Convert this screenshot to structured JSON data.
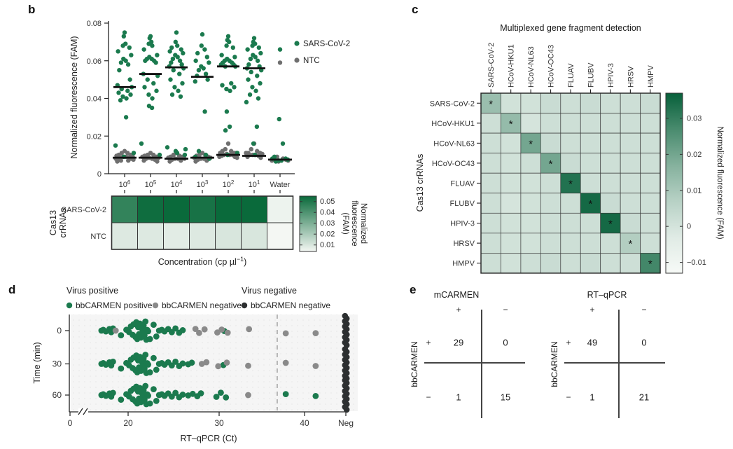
{
  "panels": {
    "b": "b",
    "c": "c",
    "d": "d",
    "e": "e"
  },
  "colors": {
    "green": "#1b7a4e",
    "gray": "#6f6f6f",
    "gray_light": "#8a8a8a",
    "black_dot": "#2c2f30",
    "strip_dark": "#0a6a3b",
    "strip_light": "#f4f7f3",
    "cmap_dark": "#07603a",
    "cmap_light": "#f7faf7"
  },
  "chart_data": [
    {
      "id": "b_scatter",
      "type": "scatter",
      "ylabel": "Normalized fluorescence (FAM)",
      "ylim": [
        0,
        0.08
      ],
      "yticks": [
        "0",
        "0.02",
        "0.04",
        "0.06",
        "0.08"
      ],
      "ytick_values": [
        0,
        0.02,
        0.04,
        0.06,
        0.08
      ],
      "categories": [
        {
          "b": "10",
          "s": "6"
        },
        {
          "b": "10",
          "s": "5"
        },
        {
          "b": "10",
          "s": "4"
        },
        {
          "b": "10",
          "s": "3"
        },
        {
          "b": "10",
          "s": "2"
        },
        {
          "b": "10",
          "s": "1"
        },
        {
          "b": "Water",
          "s": ""
        }
      ],
      "legend": [
        {
          "label": "SARS-CoV-2",
          "color": "#1b7a4e"
        },
        {
          "label": "NTC",
          "color": "#6f6f6f"
        }
      ],
      "series": [
        {
          "name": "SARS-CoV-2",
          "color": "#1b7a4e",
          "points": [
            [
              0.075,
              0.073,
              0.069,
              0.068,
              0.067,
              0.065,
              0.063,
              0.061,
              0.06,
              0.059,
              0.058,
              0.055,
              0.05,
              0.047,
              0.046,
              0.045,
              0.044,
              0.043,
              0.042,
              0.041,
              0.04,
              0.039,
              0.03,
              0.015,
              0.011,
              0.009
            ],
            [
              0.073,
              0.072,
              0.07,
              0.069,
              0.068,
              0.066,
              0.063,
              0.062,
              0.061,
              0.061,
              0.06,
              0.06,
              0.059,
              0.053,
              0.052,
              0.05,
              0.048,
              0.046,
              0.044,
              0.042,
              0.04,
              0.036,
              0.035,
              0.016,
              0.01
            ],
            [
              0.075,
              0.07,
              0.068,
              0.067,
              0.066,
              0.065,
              0.064,
              0.063,
              0.062,
              0.061,
              0.06,
              0.059,
              0.058,
              0.057,
              0.056,
              0.055,
              0.053,
              0.05,
              0.048,
              0.046,
              0.044,
              0.042,
              0.041,
              0.014,
              0.013,
              0.012,
              0.011,
              0.01
            ],
            [
              0.074,
              0.068,
              0.066,
              0.064,
              0.062,
              0.06,
              0.059,
              0.057,
              0.056,
              0.055,
              0.053,
              0.052,
              0.05,
              0.049,
              0.033,
              0.012,
              0.01,
              0.009,
              0.008
            ],
            [
              0.073,
              0.071,
              0.07,
              0.068,
              0.067,
              0.063,
              0.062,
              0.061,
              0.06,
              0.06,
              0.059,
              0.059,
              0.058,
              0.058,
              0.057,
              0.057,
              0.048,
              0.047,
              0.046,
              0.045,
              0.044,
              0.033,
              0.025,
              0.023,
              0.011,
              0.01
            ],
            [
              0.072,
              0.07,
              0.069,
              0.068,
              0.067,
              0.066,
              0.064,
              0.063,
              0.062,
              0.061,
              0.06,
              0.058,
              0.057,
              0.056,
              0.055,
              0.054,
              0.052,
              0.05,
              0.048,
              0.046,
              0.044,
              0.042,
              0.04,
              0.038,
              0.025,
              0.016,
              0.01
            ],
            [
              0.066,
              0.029,
              0.016,
              0.009,
              0.008,
              0.008,
              0.0075,
              0.007,
              0.007,
              0.0065
            ]
          ]
        },
        {
          "name": "NTC",
          "color": "#6f6f6f",
          "points": [
            [
              0.012,
              0.011,
              0.011,
              0.01,
              0.01,
              0.0095,
              0.009,
              0.009,
              0.009,
              0.0085,
              0.0085,
              0.008,
              0.008,
              0.008,
              0.0075,
              0.007,
              0.007,
              0.0065
            ],
            [
              0.011,
              0.01,
              0.01,
              0.0095,
              0.009,
              0.009,
              0.0085,
              0.0085,
              0.008,
              0.008,
              0.0075,
              0.007,
              0.0065
            ],
            [
              0.011,
              0.01,
              0.0095,
              0.009,
              0.009,
              0.0085,
              0.008,
              0.008,
              0.008,
              0.0075,
              0.007,
              0.0065
            ],
            [
              0.011,
              0.01,
              0.01,
              0.0095,
              0.009,
              0.0085,
              0.0085,
              0.008,
              0.008,
              0.0075,
              0.007,
              0.0065
            ],
            [
              0.016,
              0.013,
              0.012,
              0.012,
              0.011,
              0.011,
              0.011,
              0.0105,
              0.01,
              0.01,
              0.01,
              0.0095,
              0.009,
              0.009,
              0.0085
            ],
            [
              0.016,
              0.013,
              0.012,
              0.011,
              0.011,
              0.011,
              0.0105,
              0.01,
              0.01,
              0.01,
              0.0095,
              0.009,
              0.0085
            ],
            [
              0.059,
              0.009,
              0.008,
              0.008,
              0.0075,
              0.007,
              0.007,
              0.0065
            ]
          ]
        }
      ],
      "medians": {
        "sars": [
          0.046,
          0.053,
          0.0565,
          0.0515,
          0.057,
          0.056,
          null
        ],
        "ntc": [
          0.0085,
          0.0085,
          0.008,
          0.0085,
          0.01,
          0.0095,
          0.0075
        ]
      }
    },
    {
      "id": "b_strip",
      "type": "heatmap",
      "rows": [
        "SARS-CoV-2",
        "NTC"
      ],
      "row_axis_label": [
        "Cas13",
        "crRNAs"
      ],
      "xlabel_parts": [
        "Concentration (cp µl",
        "−1",
        ")"
      ],
      "values": [
        [
          0.046,
          0.054,
          0.057,
          0.052,
          0.057,
          0.056,
          0.0055
        ],
        [
          0.009,
          0.009,
          0.008,
          0.009,
          0.01,
          0.01,
          0.004
        ]
      ],
      "colorbar": {
        "ticks": [
          "0.05",
          "0.04",
          "0.03",
          "0.02",
          "0.01"
        ],
        "tick_values": [
          0.05,
          0.04,
          0.03,
          0.02,
          0.01
        ],
        "range": [
          0.004,
          0.055
        ],
        "label_lines": [
          "Normalized",
          "fluorescence",
          "(FAM)"
        ]
      }
    },
    {
      "id": "c_heatmap",
      "type": "heatmap",
      "title": "Multiplexed gene fragment detection",
      "columns": [
        "SARS-CoV-2",
        "HCoV-HKU1",
        "HCoV-NL63",
        "HCoV-OC43",
        "FLUAV",
        "FLUBV",
        "HPIV-3",
        "HRSV",
        "HMPV"
      ],
      "rows": [
        "SARS-CoV-2",
        "HCoV-HKU1",
        "HCoV-NL63",
        "HCoV-OC43",
        "FLUAV",
        "FLUBV",
        "HPIV-3",
        "HRSV",
        "HMPV"
      ],
      "row_axis_label": "Cas13 crRNAs",
      "diagonal_star": true,
      "star_glyph": "*",
      "values": [
        [
          0.013,
          0.001,
          0.001,
          0.003,
          0.002,
          0.003,
          0.002,
          0.002,
          0.003
        ],
        [
          0.002,
          0.014,
          0.0,
          0.002,
          0.002,
          0.002,
          0.002,
          0.002,
          0.002
        ],
        [
          0.002,
          0.001,
          0.02,
          0.003,
          0.002,
          0.002,
          0.002,
          0.002,
          0.002
        ],
        [
          0.002,
          0.001,
          0.002,
          0.02,
          0.003,
          0.002,
          0.002,
          0.002,
          0.002
        ],
        [
          0.002,
          0.001,
          0.001,
          0.002,
          0.033,
          0.002,
          0.002,
          0.002,
          0.002
        ],
        [
          0.002,
          0.0,
          0.001,
          0.002,
          0.002,
          0.035,
          0.003,
          0.002,
          0.002
        ],
        [
          0.002,
          0.001,
          0.001,
          0.002,
          0.002,
          0.002,
          0.035,
          0.003,
          0.002
        ],
        [
          0.002,
          0.001,
          0.001,
          0.002,
          0.002,
          0.002,
          0.002,
          0.008,
          0.002
        ],
        [
          0.002,
          0.001,
          0.002,
          0.003,
          0.002,
          0.003,
          0.002,
          0.002,
          0.028
        ]
      ],
      "colorbar": {
        "ticks": [
          "0.03",
          "0.02",
          "0.01",
          "0",
          "−0.01"
        ],
        "tick_values": [
          0.03,
          0.02,
          0.01,
          0,
          -0.01
        ],
        "range": [
          -0.013,
          0.037
        ],
        "label": "Normalized fluorescence (FAM)"
      }
    },
    {
      "id": "d_dotplot",
      "type": "scatter",
      "xlabel": "RT–qPCR (Ct)",
      "ylabel": "Time (min)",
      "x_ticks": [
        "0",
        "20",
        "30",
        "40",
        "Neg"
      ],
      "x_tick_values": [
        0,
        20,
        30,
        40,
        null
      ],
      "cutoff_ct": 36.8,
      "legend_groups": [
        {
          "heading": "Virus positive",
          "items": [
            {
              "label": "bbCARMEN positive",
              "color": "#1b7a4e"
            },
            {
              "label": "bbCARMEN negative",
              "color": "#8a8a8a"
            }
          ]
        },
        {
          "heading": "Virus negative",
          "items": [
            {
              "label": "bbCARMEN negative",
              "color": "#2c2f30"
            }
          ]
        }
      ],
      "rows": [
        {
          "time": "0",
          "green": [
            17.0,
            17.2,
            17.5,
            17.9,
            18.1,
            18.3,
            19.2,
            19.8,
            20.1,
            20.3,
            20.5,
            20.6,
            20.8,
            20.9,
            21.0,
            21.1,
            21.2,
            21.3,
            21.4,
            21.5,
            21.6,
            21.7,
            21.8,
            21.9,
            22.0,
            22.1,
            22.2,
            22.4,
            22.8,
            23.1,
            23.4,
            23.7,
            24.0,
            24.4,
            24.8,
            25.2,
            25.6,
            26.0,
            30.6
          ],
          "gray": [
            18.6,
            27.4,
            27.8,
            28.4,
            29.8,
            30.3,
            31.0,
            33.5,
            37.8,
            41.3
          ],
          "neg_count": 12
        },
        {
          "time": "30",
          "green": [
            17.0,
            17.2,
            17.5,
            17.9,
            18.1,
            18.3,
            19.2,
            19.8,
            20.1,
            20.3,
            20.5,
            20.6,
            20.8,
            20.9,
            21.0,
            21.1,
            21.2,
            21.3,
            21.4,
            21.5,
            21.6,
            21.7,
            21.8,
            21.9,
            22.0,
            22.1,
            22.2,
            22.4,
            22.8,
            23.1,
            23.4,
            23.7,
            24.0,
            24.4,
            24.8,
            25.2,
            25.6,
            26.0,
            26.6,
            27.0,
            30.5
          ],
          "gray": [
            28.1,
            28.6,
            29.9,
            30.9,
            33.4,
            37.8,
            41.3
          ],
          "neg_count": 12
        },
        {
          "time": "60",
          "green": [
            17.0,
            17.2,
            17.5,
            17.9,
            18.1,
            18.3,
            19.2,
            19.8,
            20.1,
            20.3,
            20.5,
            20.6,
            20.8,
            20.9,
            21.0,
            21.1,
            21.2,
            21.3,
            21.4,
            21.5,
            21.6,
            21.7,
            21.8,
            21.9,
            22.0,
            22.1,
            22.2,
            22.4,
            22.8,
            23.1,
            23.4,
            23.7,
            24.0,
            24.4,
            24.8,
            25.2,
            25.6,
            26.0,
            26.6,
            27.1,
            27.6,
            28.0,
            29.7,
            30.2,
            30.8,
            37.8,
            41.3
          ],
          "gray": [
            33.4
          ],
          "neg_count": 12
        }
      ]
    },
    {
      "id": "e_confusion",
      "type": "table",
      "row_axis": "bbCARMEN",
      "tables": [
        {
          "title": "mCARMEN",
          "cols": [
            "+",
            "−"
          ],
          "rows": [
            "+",
            "−"
          ],
          "values": [
            [
              29,
              0
            ],
            [
              1,
              15
            ]
          ]
        },
        {
          "title": "RT–qPCR",
          "cols": [
            "+",
            "−"
          ],
          "rows": [
            "+",
            "−"
          ],
          "values": [
            [
              49,
              0
            ],
            [
              1,
              21
            ]
          ]
        }
      ]
    }
  ]
}
